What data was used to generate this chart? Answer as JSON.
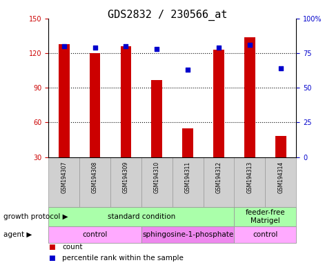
{
  "title": "GDS2832 / 230566_at",
  "samples": [
    "GSM194307",
    "GSM194308",
    "GSM194309",
    "GSM194310",
    "GSM194311",
    "GSM194312",
    "GSM194313",
    "GSM194314"
  ],
  "counts": [
    128,
    120,
    126,
    97,
    55,
    123,
    134,
    48
  ],
  "percentile_ranks": [
    80,
    79,
    80,
    78,
    63,
    79,
    81,
    64
  ],
  "ylim_left": [
    30,
    150
  ],
  "yticks_left": [
    30,
    60,
    90,
    120,
    150
  ],
  "ylim_right": [
    0,
    100
  ],
  "yticks_right": [
    0,
    25,
    50,
    75,
    100
  ],
  "bar_color": "#cc0000",
  "dot_color": "#0000cc",
  "bar_width": 0.35,
  "growth_protocol_groups": [
    {
      "label": "standard condition",
      "start": 0,
      "end": 6,
      "color": "#aaffaa"
    },
    {
      "label": "feeder-free\nMatrigel",
      "start": 6,
      "end": 8,
      "color": "#aaffaa"
    }
  ],
  "agent_groups": [
    {
      "label": "control",
      "start": 0,
      "end": 3,
      "color": "#ffaaff"
    },
    {
      "label": "sphingosine-1-phosphate",
      "start": 3,
      "end": 6,
      "color": "#ee88ee"
    },
    {
      "label": "control",
      "start": 6,
      "end": 8,
      "color": "#ffaaff"
    }
  ],
  "growth_protocol_label": "growth protocol",
  "agent_label": "agent",
  "legend_count_label": "count",
  "legend_pct_label": "percentile rank within the sample",
  "grid_yticks": [
    60,
    90,
    120
  ],
  "tick_label_fontsize": 7,
  "annot_fontsize": 7.5,
  "title_fontsize": 11,
  "bg_color": "#ffffff",
  "bar_bottom": 30,
  "left_tick_color": "#cc0000",
  "right_tick_color": "#0000cc",
  "xtick_box_color": "#d0d0d0",
  "xtick_box_edge": "#999999"
}
